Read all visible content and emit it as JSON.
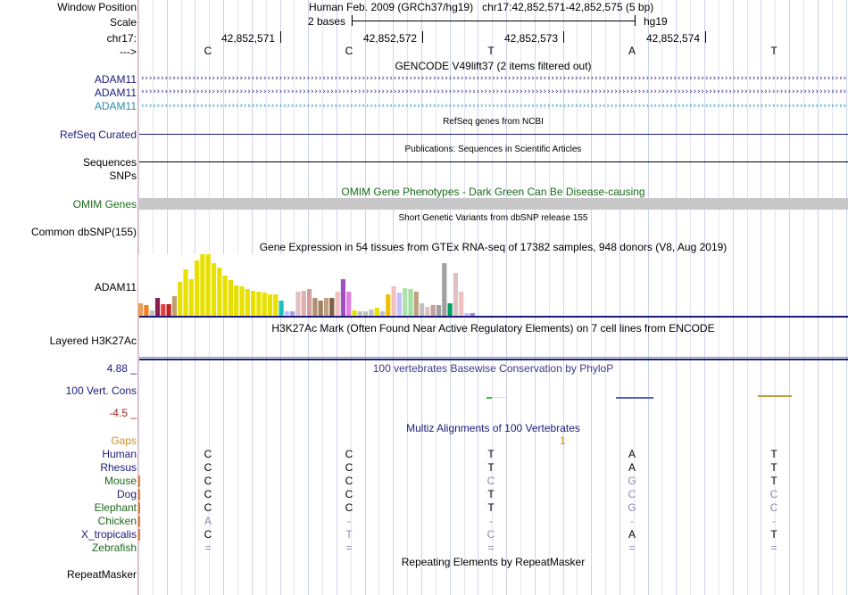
{
  "header": {
    "window_position_label": "Window Position",
    "window_position_value": "Human Feb. 2009 (GRCh37/hg19)   chr17:42,852,571-42,852,575 (5 bp)",
    "scale_label": "Scale",
    "scale_bases": "2 bases",
    "scale_assembly": "hg19",
    "chrom_label": "chr17:",
    "positions": [
      "42,852,571",
      "42,852,572",
      "42,852,573",
      "42,852,574"
    ],
    "strand_label": "--->",
    "bases": [
      "C",
      "C",
      "T",
      "A",
      "T"
    ]
  },
  "tracks": {
    "gencode_title": "GENCODE V49lift37 (2 items filtered out)",
    "gencode_items": [
      {
        "name": "ADAM11",
        "color": "#1a1a7a"
      },
      {
        "name": "ADAM11",
        "color": "#1a1a7a"
      },
      {
        "name": "ADAM11",
        "color": "#2a8ab0"
      }
    ],
    "refseq_title": "RefSeq genes from NCBI",
    "refseq_label": "RefSeq Curated",
    "pubs_title": "Publications: Sequences in Scientific Articles",
    "sequences_label": "Sequences",
    "snps_label": "SNPs",
    "omim_title": "OMIM Gene Phenotypes - Dark Green Can Be Disease-causing",
    "omim_label": "OMIM Genes",
    "dbsnp_title": "Short Genetic Variants from dbSNP release 155",
    "dbsnp_label": "Common dbSNP(155)",
    "gtex_title": "Gene Expression in 54 tissues from GTEx RNA-seq of 17382 samples, 948 donors (V8, Aug 2019)",
    "gtex_label": "ADAM11",
    "h3k27ac_title": "H3K27Ac Mark (Often Found Near Active Regulatory Elements) on 7 cell lines from ENCODE",
    "h3k27ac_label": "Layered H3K27Ac",
    "cons_max": "4.88 _",
    "cons_title": "100 vertebrates Basewise Conservation by PhyloP",
    "cons_label": "100 Vert. Cons",
    "cons_min": "-4.5 _",
    "multiz_title": "Multiz Alignments of 100 Vertebrates",
    "gaps_label": "Gaps",
    "gaps_value": "1",
    "repeat_title": "Repeating Elements by RepeatMasker",
    "repeat_label": "RepeatMasker"
  },
  "gtex_bars": [
    {
      "v": 0.22,
      "c": "#e8a060"
    },
    {
      "v": 0.18,
      "c": "#f08020"
    },
    {
      "v": 0.1,
      "c": "#c0c0c0"
    },
    {
      "v": 0.3,
      "c": "#8a2050"
    },
    {
      "v": 0.2,
      "c": "#e04040"
    },
    {
      "v": 0.2,
      "c": "#c02020"
    },
    {
      "v": 0.33,
      "c": "#c0a070"
    },
    {
      "v": 0.55,
      "c": "#e8e000"
    },
    {
      "v": 0.75,
      "c": "#e8e000"
    },
    {
      "v": 0.6,
      "c": "#e8e000"
    },
    {
      "v": 0.9,
      "c": "#e8e000"
    },
    {
      "v": 1.0,
      "c": "#e8e000"
    },
    {
      "v": 1.0,
      "c": "#e8e000"
    },
    {
      "v": 0.85,
      "c": "#e8e000"
    },
    {
      "v": 0.78,
      "c": "#e8e000"
    },
    {
      "v": 0.66,
      "c": "#e8e000"
    },
    {
      "v": 0.58,
      "c": "#e8e000"
    },
    {
      "v": 0.5,
      "c": "#e8e000"
    },
    {
      "v": 0.48,
      "c": "#e8e000"
    },
    {
      "v": 0.44,
      "c": "#e8e000"
    },
    {
      "v": 0.42,
      "c": "#e8e000"
    },
    {
      "v": 0.4,
      "c": "#e8e000"
    },
    {
      "v": 0.38,
      "c": "#e8e000"
    },
    {
      "v": 0.36,
      "c": "#e8e000"
    },
    {
      "v": 0.35,
      "c": "#e8e000"
    },
    {
      "v": 0.25,
      "c": "#20c0c0"
    },
    {
      "v": 0.08,
      "c": "#c0c0ff"
    },
    {
      "v": 0.08,
      "c": "#a0a0e0"
    },
    {
      "v": 0.4,
      "c": "#e0c0c0"
    },
    {
      "v": 0.42,
      "c": "#e0b0b0"
    },
    {
      "v": 0.44,
      "c": "#d0a0a0"
    },
    {
      "v": 0.3,
      "c": "#b09070"
    },
    {
      "v": 0.26,
      "c": "#a08060"
    },
    {
      "v": 0.3,
      "c": "#c0a080"
    },
    {
      "v": 0.3,
      "c": "#806040"
    },
    {
      "v": 0.4,
      "c": "#f0c0c0"
    },
    {
      "v": 0.6,
      "c": "#a050c0"
    },
    {
      "v": 0.4,
      "c": "#e080e0"
    },
    {
      "v": 0.1,
      "c": "#e8e000"
    },
    {
      "v": 0.08,
      "c": "#c0c0c0"
    },
    {
      "v": 0.08,
      "c": "#c0c0c0"
    },
    {
      "v": 0.12,
      "c": "#c0c0c0"
    },
    {
      "v": 0.14,
      "c": "#e8e000"
    },
    {
      "v": 0.08,
      "c": "#c0c0c0"
    },
    {
      "v": 0.35,
      "c": "#f0c000"
    },
    {
      "v": 0.48,
      "c": "#f0c0c0"
    },
    {
      "v": 0.38,
      "c": "#c0c0ff"
    },
    {
      "v": 0.46,
      "c": "#b0e0b0"
    },
    {
      "v": 0.44,
      "c": "#a0e0a0"
    },
    {
      "v": 0.4,
      "c": "#c0a080"
    },
    {
      "v": 0.22,
      "c": "#c0c0c0"
    },
    {
      "v": 0.16,
      "c": "#e0c0c0"
    },
    {
      "v": 0.18,
      "c": "#c0a0a0"
    },
    {
      "v": 0.18,
      "c": "#a0a0a0"
    },
    {
      "v": 0.85,
      "c": "#a0a0a0"
    },
    {
      "v": 0.22,
      "c": "#00a060"
    },
    {
      "v": 0.7,
      "c": "#e0c0c0"
    },
    {
      "v": 0.4,
      "c": "#f0c0c0"
    },
    {
      "v": 0.06,
      "c": "#c0c0ff"
    },
    {
      "v": 0.05,
      "c": "#a080e0"
    }
  ],
  "alignment": [
    {
      "species": "Human",
      "color": "#1a1a7a",
      "cells": [
        [
          "C",
          "#000"
        ],
        [
          "C",
          "#000"
        ],
        [
          "T",
          "#000"
        ],
        [
          "A",
          "#000"
        ],
        [
          "T",
          "#000"
        ]
      ],
      "mark": false
    },
    {
      "species": "Rhesus",
      "color": "#1a1a7a",
      "cells": [
        [
          "C",
          "#000"
        ],
        [
          "C",
          "#000"
        ],
        [
          "T",
          "#000"
        ],
        [
          "A",
          "#000"
        ],
        [
          "T",
          "#000"
        ]
      ],
      "mark": false
    },
    {
      "species": "Mouse",
      "color": "#1a6a1a",
      "cells": [
        [
          "C",
          "#000"
        ],
        [
          "C",
          "#000"
        ],
        [
          "C",
          "#8a8ab0"
        ],
        [
          "G",
          "#8a8ab0"
        ],
        [
          "T",
          "#000"
        ]
      ],
      "mark": true
    },
    {
      "species": "Dog",
      "color": "#1a1a7a",
      "cells": [
        [
          "C",
          "#000"
        ],
        [
          "C",
          "#000"
        ],
        [
          "T",
          "#000"
        ],
        [
          "C",
          "#8a8ab0"
        ],
        [
          "C",
          "#8a8ab0"
        ]
      ],
      "mark": true
    },
    {
      "species": "Elephant",
      "color": "#1a6a1a",
      "cells": [
        [
          "C",
          "#000"
        ],
        [
          "C",
          "#000"
        ],
        [
          "T",
          "#000"
        ],
        [
          "G",
          "#8a8ab0"
        ],
        [
          "C",
          "#8a8ab0"
        ]
      ],
      "mark": true
    },
    {
      "species": "Chicken",
      "color": "#1a6a1a",
      "cells": [
        [
          "A",
          "#8a8ab0"
        ],
        [
          "-",
          "#8a8ab0"
        ],
        [
          "-",
          "#8a8ab0"
        ],
        [
          "-",
          "#8a8ab0"
        ],
        [
          "-",
          "#8a8ab0"
        ]
      ],
      "mark": true
    },
    {
      "species": "X_tropicalis",
      "color": "#1a1a7a",
      "cells": [
        [
          "C",
          "#000"
        ],
        [
          "T",
          "#8a8ab0"
        ],
        [
          "C",
          "#8a8ab0"
        ],
        [
          "A",
          "#000"
        ],
        [
          "T",
          "#000"
        ]
      ],
      "mark": true
    },
    {
      "species": "Zebrafish",
      "color": "#1a6a1a",
      "cells": [
        [
          "=",
          "#8a8ab0"
        ],
        [
          "=",
          "#8a8ab0"
        ],
        [
          "=",
          "#8a8ab0"
        ],
        [
          "=",
          "#8a8ab0"
        ],
        [
          "=",
          "#8a8ab0"
        ]
      ],
      "mark": false
    }
  ]
}
